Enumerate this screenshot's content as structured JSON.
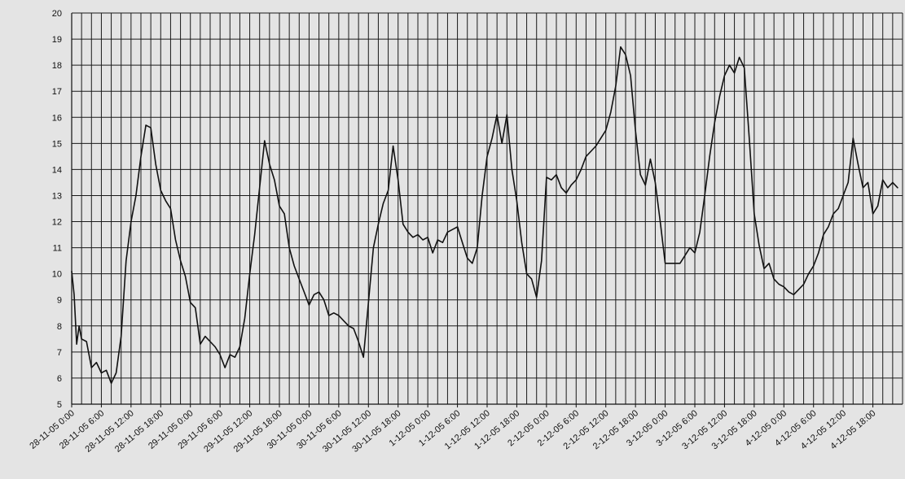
{
  "chart_data": {
    "type": "line",
    "title": "",
    "xlabel": "",
    "ylabel": "",
    "ylim": [
      5,
      20
    ],
    "y_ticks": [
      5,
      6,
      7,
      8,
      9,
      10,
      11,
      12,
      13,
      14,
      15,
      16,
      17,
      18,
      19,
      20
    ],
    "grid": true,
    "x_tick_labels": [
      "28-11-05 0:00",
      "28-11-05 6:00",
      "28-11-05 12:00",
      "28-11-05 18:00",
      "29-11-05 0:00",
      "29-11-05 6:00",
      "29-11-05 12:00",
      "29-11-05 18:00",
      "30-11-05 0:00",
      "30-11-05 6:00",
      "30-11-05 12:00",
      "30-11-05 18:00",
      "1-12-05 0:00",
      "1-12-05 6:00",
      "1-12-05 12:00",
      "1-12-05 18:00",
      "2-12-05 0:00",
      "2-12-05 6:00",
      "2-12-05 12:00",
      "2-12-05 18:00",
      "3-12-05 0:00",
      "3-12-05 6:00",
      "3-12-05 12:00",
      "3-12-05 18:00",
      "4-12-05 0:00",
      "4-12-05 6:00",
      "4-12-05 12:00",
      "4-12-05 18:00"
    ],
    "x_ticks": [
      "2005-11-28 00:00",
      "2005-11-28 06:00",
      "2005-11-28 12:00",
      "2005-11-28 18:00",
      "2005-11-29 00:00",
      "2005-11-29 06:00",
      "2005-11-29 12:00",
      "2005-11-29 18:00",
      "2005-11-30 00:00",
      "2005-11-30 06:00",
      "2005-11-30 12:00",
      "2005-11-30 18:00",
      "2005-12-01 00:00",
      "2005-12-01 06:00",
      "2005-12-01 12:00",
      "2005-12-01 18:00",
      "2005-12-02 00:00",
      "2005-12-02 06:00",
      "2005-12-02 12:00",
      "2005-12-02 18:00",
      "2005-12-03 00:00",
      "2005-12-03 06:00",
      "2005-12-03 12:00",
      "2005-12-03 18:00",
      "2005-12-04 00:00",
      "2005-12-04 06:00",
      "2005-12-04 12:00",
      "2005-12-04 18:00"
    ],
    "xlim": [
      "2005-11-28 00:00",
      "2005-12-05 00:00"
    ],
    "series": [
      {
        "color": "#111111",
        "points": [
          [
            "2005-11-28 00:00",
            10.1
          ],
          [
            "2005-11-28 00:30",
            9.2
          ],
          [
            "2005-11-28 01:00",
            7.3
          ],
          [
            "2005-11-28 01:30",
            8.0
          ],
          [
            "2005-11-28 02:00",
            7.5
          ],
          [
            "2005-11-28 03:00",
            7.4
          ],
          [
            "2005-11-28 04:00",
            6.4
          ],
          [
            "2005-11-28 05:00",
            6.6
          ],
          [
            "2005-11-28 06:00",
            6.2
          ],
          [
            "2005-11-28 07:00",
            6.3
          ],
          [
            "2005-11-28 08:00",
            5.8
          ],
          [
            "2005-11-28 09:00",
            6.2
          ],
          [
            "2005-11-28 10:00",
            7.6
          ],
          [
            "2005-11-28 11:00",
            10.5
          ],
          [
            "2005-11-28 12:00",
            12.0
          ],
          [
            "2005-11-28 13:00",
            13.0
          ],
          [
            "2005-11-28 14:00",
            14.5
          ],
          [
            "2005-11-28 15:00",
            15.7
          ],
          [
            "2005-11-28 16:00",
            15.6
          ],
          [
            "2005-11-28 17:00",
            14.2
          ],
          [
            "2005-11-28 18:00",
            13.2
          ],
          [
            "2005-11-28 19:00",
            12.8
          ],
          [
            "2005-11-28 20:00",
            12.5
          ],
          [
            "2005-11-28 21:00",
            11.3
          ],
          [
            "2005-11-28 22:00",
            10.5
          ],
          [
            "2005-11-28 23:00",
            9.9
          ],
          [
            "2005-11-29 00:00",
            8.9
          ],
          [
            "2005-11-29 01:00",
            8.7
          ],
          [
            "2005-11-29 02:00",
            7.3
          ],
          [
            "2005-11-29 03:00",
            7.6
          ],
          [
            "2005-11-29 04:00",
            7.4
          ],
          [
            "2005-11-29 05:00",
            7.2
          ],
          [
            "2005-11-29 06:00",
            6.9
          ],
          [
            "2005-11-29 07:00",
            6.4
          ],
          [
            "2005-11-29 08:00",
            6.9
          ],
          [
            "2005-11-29 09:00",
            6.8
          ],
          [
            "2005-11-29 10:00",
            7.2
          ],
          [
            "2005-11-29 11:00",
            8.3
          ],
          [
            "2005-11-29 12:00",
            10.0
          ],
          [
            "2005-11-29 13:00",
            11.5
          ],
          [
            "2005-11-29 14:00",
            13.3
          ],
          [
            "2005-11-29 15:00",
            15.1
          ],
          [
            "2005-11-29 16:00",
            14.2
          ],
          [
            "2005-11-29 17:00",
            13.6
          ],
          [
            "2005-11-29 18:00",
            12.6
          ],
          [
            "2005-11-29 19:00",
            12.3
          ],
          [
            "2005-11-29 20:00",
            11.0
          ],
          [
            "2005-11-29 21:00",
            10.3
          ],
          [
            "2005-11-29 22:00",
            9.8
          ],
          [
            "2005-11-29 23:00",
            9.3
          ],
          [
            "2005-11-30 00:00",
            8.8
          ],
          [
            "2005-11-30 01:00",
            9.2
          ],
          [
            "2005-11-30 02:00",
            9.3
          ],
          [
            "2005-11-30 03:00",
            9.0
          ],
          [
            "2005-11-30 04:00",
            8.4
          ],
          [
            "2005-11-30 05:00",
            8.5
          ],
          [
            "2005-11-30 06:00",
            8.4
          ],
          [
            "2005-11-30 07:00",
            8.2
          ],
          [
            "2005-11-30 08:00",
            8.0
          ],
          [
            "2005-11-30 09:00",
            7.9
          ],
          [
            "2005-11-30 10:00",
            7.4
          ],
          [
            "2005-11-30 11:00",
            6.8
          ],
          [
            "2005-11-30 12:00",
            8.9
          ],
          [
            "2005-11-30 13:00",
            11.0
          ],
          [
            "2005-11-30 14:00",
            11.9
          ],
          [
            "2005-11-30 15:00",
            12.7
          ],
          [
            "2005-11-30 16:00",
            13.2
          ],
          [
            "2005-11-30 17:00",
            14.9
          ],
          [
            "2005-11-30 18:00",
            13.6
          ],
          [
            "2005-11-30 19:00",
            11.9
          ],
          [
            "2005-11-30 20:00",
            11.6
          ],
          [
            "2005-11-30 21:00",
            11.4
          ],
          [
            "2005-11-30 22:00",
            11.5
          ],
          [
            "2005-11-30 23:00",
            11.3
          ],
          [
            "2005-12-01 00:00",
            11.4
          ],
          [
            "2005-12-01 01:00",
            10.8
          ],
          [
            "2005-12-01 02:00",
            11.3
          ],
          [
            "2005-12-01 03:00",
            11.2
          ],
          [
            "2005-12-01 04:00",
            11.6
          ],
          [
            "2005-12-01 05:00",
            11.7
          ],
          [
            "2005-12-01 06:00",
            11.8
          ],
          [
            "2005-12-01 07:00",
            11.2
          ],
          [
            "2005-12-01 08:00",
            10.6
          ],
          [
            "2005-12-01 09:00",
            10.4
          ],
          [
            "2005-12-01 10:00",
            11.0
          ],
          [
            "2005-12-01 11:00",
            13.0
          ],
          [
            "2005-12-01 12:00",
            14.5
          ],
          [
            "2005-12-01 13:00",
            15.2
          ],
          [
            "2005-12-01 14:00",
            16.1
          ],
          [
            "2005-12-01 15:00",
            15.0
          ],
          [
            "2005-12-01 16:00",
            16.1
          ],
          [
            "2005-12-01 17:00",
            14.0
          ],
          [
            "2005-12-01 18:00",
            12.8
          ],
          [
            "2005-12-01 19:00",
            11.2
          ],
          [
            "2005-12-01 20:00",
            10.0
          ],
          [
            "2005-12-01 21:00",
            9.8
          ],
          [
            "2005-12-01 22:00",
            9.1
          ],
          [
            "2005-12-01 23:00",
            10.5
          ],
          [
            "2005-12-02 00:00",
            13.7
          ],
          [
            "2005-12-02 01:00",
            13.6
          ],
          [
            "2005-12-02 02:00",
            13.8
          ],
          [
            "2005-12-02 03:00",
            13.3
          ],
          [
            "2005-12-02 04:00",
            13.1
          ],
          [
            "2005-12-02 05:00",
            13.4
          ],
          [
            "2005-12-02 06:00",
            13.6
          ],
          [
            "2005-12-02 07:00",
            14.0
          ],
          [
            "2005-12-02 08:00",
            14.5
          ],
          [
            "2005-12-02 09:00",
            14.7
          ],
          [
            "2005-12-02 10:00",
            14.9
          ],
          [
            "2005-12-02 11:00",
            15.2
          ],
          [
            "2005-12-02 12:00",
            15.5
          ],
          [
            "2005-12-02 13:00",
            16.2
          ],
          [
            "2005-12-02 14:00",
            17.2
          ],
          [
            "2005-12-02 15:00",
            18.7
          ],
          [
            "2005-12-02 16:00",
            18.4
          ],
          [
            "2005-12-02 17:00",
            17.6
          ],
          [
            "2005-12-02 18:00",
            15.5
          ],
          [
            "2005-12-02 19:00",
            13.8
          ],
          [
            "2005-12-02 20:00",
            13.4
          ],
          [
            "2005-12-02 21:00",
            14.4
          ],
          [
            "2005-12-02 22:00",
            13.5
          ],
          [
            "2005-12-02 23:00",
            12.0
          ],
          [
            "2005-12-03 00:00",
            10.4
          ],
          [
            "2005-12-03 01:00",
            10.4
          ],
          [
            "2005-12-03 02:00",
            10.4
          ],
          [
            "2005-12-03 03:00",
            10.4
          ],
          [
            "2005-12-03 04:00",
            10.7
          ],
          [
            "2005-12-03 05:00",
            11.0
          ],
          [
            "2005-12-03 06:00",
            10.8
          ],
          [
            "2005-12-03 07:00",
            11.6
          ],
          [
            "2005-12-03 08:00",
            13.0
          ],
          [
            "2005-12-03 09:00",
            14.5
          ],
          [
            "2005-12-03 10:00",
            15.8
          ],
          [
            "2005-12-03 11:00",
            16.8
          ],
          [
            "2005-12-03 12:00",
            17.6
          ],
          [
            "2005-12-03 13:00",
            18.0
          ],
          [
            "2005-12-03 14:00",
            17.7
          ],
          [
            "2005-12-03 15:00",
            18.3
          ],
          [
            "2005-12-03 16:00",
            17.9
          ],
          [
            "2005-12-03 17:00",
            15.2
          ],
          [
            "2005-12-03 18:00",
            12.3
          ],
          [
            "2005-12-03 19:00",
            11.1
          ],
          [
            "2005-12-03 20:00",
            10.2
          ],
          [
            "2005-12-03 21:00",
            10.4
          ],
          [
            "2005-12-03 22:00",
            9.8
          ],
          [
            "2005-12-03 23:00",
            9.6
          ],
          [
            "2005-12-04 00:00",
            9.5
          ],
          [
            "2005-12-04 01:00",
            9.3
          ],
          [
            "2005-12-04 02:00",
            9.2
          ],
          [
            "2005-12-04 03:00",
            9.4
          ],
          [
            "2005-12-04 04:00",
            9.6
          ],
          [
            "2005-12-04 05:00",
            10.0
          ],
          [
            "2005-12-04 06:00",
            10.3
          ],
          [
            "2005-12-04 07:00",
            10.8
          ],
          [
            "2005-12-04 08:00",
            11.5
          ],
          [
            "2005-12-04 09:00",
            11.8
          ],
          [
            "2005-12-04 10:00",
            12.3
          ],
          [
            "2005-12-04 11:00",
            12.5
          ],
          [
            "2005-12-04 12:00",
            13.0
          ],
          [
            "2005-12-04 13:00",
            13.5
          ],
          [
            "2005-12-04 14:00",
            15.2
          ],
          [
            "2005-12-04 15:00",
            14.2
          ],
          [
            "2005-12-04 16:00",
            13.3
          ],
          [
            "2005-12-04 17:00",
            13.5
          ],
          [
            "2005-12-04 18:00",
            12.3
          ],
          [
            "2005-12-04 19:00",
            12.6
          ],
          [
            "2005-12-04 20:00",
            13.6
          ],
          [
            "2005-12-04 21:00",
            13.3
          ],
          [
            "2005-12-04 22:00",
            13.5
          ],
          [
            "2005-12-04 23:00",
            13.3
          ]
        ]
      }
    ]
  }
}
